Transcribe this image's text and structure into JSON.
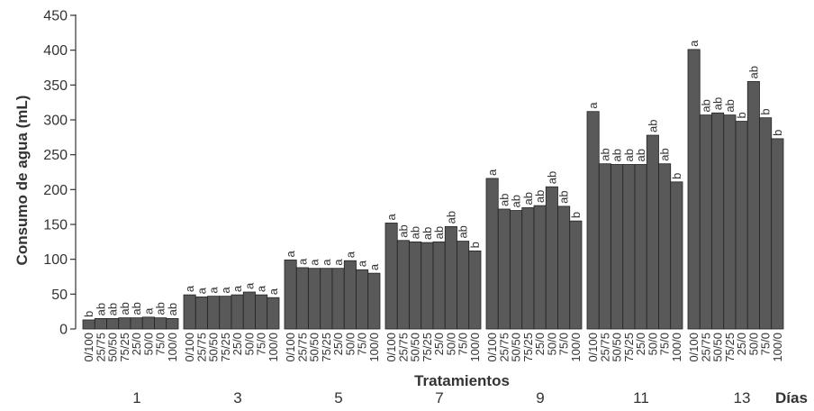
{
  "chart_data": {
    "type": "bar",
    "ylabel": "Consumo de agua (mL)",
    "xlabel": "Tratamientos",
    "group_axis_label": "Días",
    "ylim": [
      0,
      450
    ],
    "yticks": [
      0,
      50,
      100,
      150,
      200,
      250,
      300,
      350,
      400,
      450
    ],
    "categories": [
      "0/100",
      "25/75",
      "50/50",
      "75/25",
      "25/0",
      "50/0",
      "75/0",
      "100/0"
    ],
    "bar_color": "#595959",
    "groups": [
      {
        "day": "1",
        "values": [
          13,
          15,
          15,
          16,
          16,
          17,
          16,
          15
        ],
        "letters": [
          "b",
          "ab",
          "ab",
          "ab",
          "ab",
          "a",
          "ab",
          "ab"
        ]
      },
      {
        "day": "3",
        "values": [
          49,
          46,
          47,
          47,
          49,
          53,
          49,
          45
        ],
        "letters": [
          "a",
          "a",
          "a",
          "a",
          "a",
          "a",
          "a",
          "a"
        ]
      },
      {
        "day": "5",
        "values": [
          99,
          88,
          87,
          87,
          87,
          98,
          85,
          80
        ],
        "letters": [
          "a",
          "a",
          "a",
          "a",
          "a",
          "a",
          "a",
          "a"
        ]
      },
      {
        "day": "7",
        "values": [
          152,
          127,
          125,
          124,
          125,
          147,
          126,
          112
        ],
        "letters": [
          "a",
          "ab",
          "ab",
          "ab",
          "ab",
          "ab",
          "ab",
          "b"
        ]
      },
      {
        "day": "9",
        "values": [
          216,
          172,
          170,
          174,
          177,
          204,
          176,
          155
        ],
        "letters": [
          "a",
          "ab",
          "ab",
          "ab",
          "ab",
          "ab",
          "ab",
          "b"
        ]
      },
      {
        "day": "11",
        "values": [
          312,
          237,
          236,
          236,
          236,
          278,
          237,
          211
        ],
        "letters": [
          "a",
          "ab",
          "ab",
          "ab",
          "ab",
          "ab",
          "ab",
          "b"
        ]
      },
      {
        "day": "13",
        "values": [
          401,
          307,
          310,
          307,
          298,
          355,
          303,
          273
        ],
        "letters": [
          "a",
          "ab",
          "ab",
          "ab",
          "b",
          "ab",
          "b",
          "b"
        ]
      }
    ]
  }
}
